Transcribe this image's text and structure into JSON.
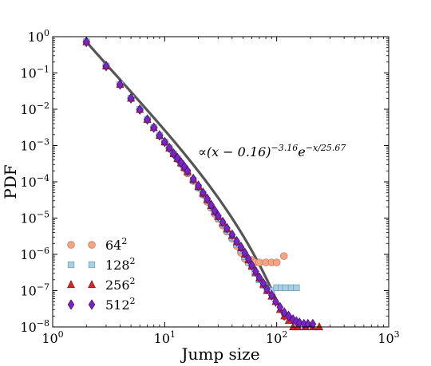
{
  "chart_data": {
    "type": "scatter",
    "xlabel": "Jump size",
    "ylabel": "PDF",
    "xscale": "log",
    "yscale": "log",
    "xlim": [
      1,
      1000
    ],
    "ylim": [
      1e-08,
      1
    ],
    "x_ticks": [
      {
        "value": 1,
        "base": "10",
        "exp": "0"
      },
      {
        "value": 10,
        "base": "10",
        "exp": "1"
      },
      {
        "value": 100,
        "base": "10",
        "exp": "2"
      },
      {
        "value": 1000,
        "base": "10",
        "exp": "3"
      }
    ],
    "y_ticks": [
      {
        "value": 1,
        "base": "10",
        "exp": "0"
      },
      {
        "value": 0.1,
        "base": "10",
        "exp": "−1"
      },
      {
        "value": 0.01,
        "base": "10",
        "exp": "−2"
      },
      {
        "value": 0.001,
        "base": "10",
        "exp": "−3"
      },
      {
        "value": 0.0001,
        "base": "10",
        "exp": "−4"
      },
      {
        "value": 1e-05,
        "base": "10",
        "exp": "−5"
      },
      {
        "value": 1e-06,
        "base": "10",
        "exp": "−6"
      },
      {
        "value": 1e-07,
        "base": "10",
        "exp": "−7"
      },
      {
        "value": 1e-08,
        "base": "10",
        "exp": "−8"
      }
    ],
    "legend_position": "lower-left",
    "annotation": {
      "prefix": "∝(x − 0.16)",
      "exp1": "−3.16",
      "mid": "e",
      "exp2": "−x/25.67",
      "x": 22,
      "y": 0.0011
    },
    "fit": {
      "color": "#555555",
      "a": 0.16,
      "alpha": 3.16,
      "lambda": 25.67,
      "norm": 0.67,
      "x_start": 2,
      "x_end": 117
    },
    "series": [
      {
        "label_base": "64",
        "label_exp": "2",
        "marker": "circle",
        "color": "#F4A582",
        "edge": "#c0785a",
        "points": [
          [
            2,
            0.72
          ],
          [
            3,
            0.155
          ],
          [
            4,
            0.048
          ],
          [
            5,
            0.02
          ],
          [
            6,
            0.0098
          ],
          [
            7,
            0.0052
          ],
          [
            8,
            0.0031
          ],
          [
            9,
            0.0019
          ],
          [
            10,
            0.00125
          ],
          [
            11,
            0.00084
          ],
          [
            12,
            0.00058
          ],
          [
            13,
            0.00042
          ],
          [
            14,
            0.00031
          ],
          [
            15,
            0.00023
          ],
          [
            16,
            0.00017
          ],
          [
            18,
            0.000105
          ],
          [
            20,
            6.8e-05
          ],
          [
            22,
            4.4e-05
          ],
          [
            24,
            2.8e-05
          ],
          [
            26,
            1.9e-05
          ],
          [
            28,
            1.3e-05
          ],
          [
            30,
            9.5e-06
          ],
          [
            33,
            6.2e-06
          ],
          [
            36,
            4.2e-06
          ],
          [
            40,
            2.7e-06
          ],
          [
            44,
            1.7e-06
          ],
          [
            48,
            1.1e-06
          ],
          [
            52,
            7.5e-07
          ],
          [
            56,
            6e-07
          ],
          [
            60,
            7e-07
          ],
          [
            64,
            6e-07
          ],
          [
            70,
            6e-07
          ],
          [
            80,
            6e-07
          ],
          [
            90,
            6e-07
          ],
          [
            100,
            6e-07
          ],
          [
            116,
            9e-07
          ]
        ]
      },
      {
        "label_base": "128",
        "label_exp": "2",
        "marker": "square",
        "color": "#A6D0E4",
        "edge": "#6e9ab0",
        "points": [
          [
            2,
            0.72
          ],
          [
            3,
            0.155
          ],
          [
            4,
            0.048
          ],
          [
            5,
            0.02
          ],
          [
            6,
            0.0098
          ],
          [
            7,
            0.0052
          ],
          [
            8,
            0.0031
          ],
          [
            9,
            0.0019
          ],
          [
            10,
            0.00125
          ],
          [
            11,
            0.00085
          ],
          [
            12,
            0.00059
          ],
          [
            13,
            0.00043
          ],
          [
            14,
            0.00032
          ],
          [
            15,
            0.00024
          ],
          [
            16,
            0.00018
          ],
          [
            18,
            0.00011
          ],
          [
            20,
            7e-05
          ],
          [
            22,
            4.6e-05
          ],
          [
            24,
            3e-05
          ],
          [
            26,
            2e-05
          ],
          [
            28,
            1.4e-05
          ],
          [
            30,
            1e-05
          ],
          [
            33,
            6.7e-06
          ],
          [
            36,
            4.5e-06
          ],
          [
            40,
            2.9e-06
          ],
          [
            44,
            1.9e-06
          ],
          [
            48,
            1.3e-06
          ],
          [
            52,
            8.8e-07
          ],
          [
            56,
            6e-07
          ],
          [
            60,
            4.5e-07
          ],
          [
            64,
            3e-07
          ],
          [
            70,
            2e-07
          ],
          [
            76,
            1.4e-07
          ],
          [
            82,
            1.1e-07
          ],
          [
            90,
            1e-07
          ],
          [
            100,
            1.2e-07
          ],
          [
            110,
            1.2e-07
          ],
          [
            120,
            1.2e-07
          ],
          [
            135,
            1.2e-07
          ],
          [
            150,
            1.2e-07
          ]
        ]
      },
      {
        "label_base": "256",
        "label_exp": "2",
        "marker": "triangle",
        "color": "#D62728",
        "edge": "#7a1515",
        "points": [
          [
            2,
            0.72
          ],
          [
            3,
            0.155
          ],
          [
            4,
            0.048
          ],
          [
            5,
            0.02
          ],
          [
            6,
            0.0098
          ],
          [
            7,
            0.0052
          ],
          [
            8,
            0.0031
          ],
          [
            9,
            0.0019
          ],
          [
            10,
            0.00125
          ],
          [
            11,
            0.00085
          ],
          [
            12,
            0.0006
          ],
          [
            13,
            0.00044
          ],
          [
            14,
            0.00033
          ],
          [
            15,
            0.00025
          ],
          [
            16,
            0.00019
          ],
          [
            18,
            0.000115
          ],
          [
            20,
            7.4e-05
          ],
          [
            22,
            4.8e-05
          ],
          [
            24,
            3.2e-05
          ],
          [
            26,
            2.2e-05
          ],
          [
            28,
            1.5e-05
          ],
          [
            30,
            1.1e-05
          ],
          [
            33,
            7.4e-06
          ],
          [
            36,
            5e-06
          ],
          [
            40,
            3.3e-06
          ],
          [
            44,
            2.2e-06
          ],
          [
            48,
            1.5e-06
          ],
          [
            52,
            1e-06
          ],
          [
            56,
            7e-07
          ],
          [
            60,
            4.8e-07
          ],
          [
            65,
            3.2e-07
          ],
          [
            70,
            2.2e-07
          ],
          [
            76,
            1.5e-07
          ],
          [
            82,
            1e-07
          ],
          [
            90,
            7e-08
          ],
          [
            98,
            5e-08
          ],
          [
            107,
            3e-08
          ],
          [
            117,
            2e-08
          ],
          [
            128,
            1.5e-08
          ],
          [
            140,
            1e-08
          ],
          [
            155,
            1e-08
          ],
          [
            180,
            1e-08
          ],
          [
            210,
            1e-08
          ],
          [
            240,
            1e-08
          ]
        ]
      },
      {
        "label_base": "512",
        "label_exp": "2",
        "marker": "diamond",
        "color": "#7B22C9",
        "edge": "#3d0f66",
        "points": [
          [
            2,
            0.72
          ],
          [
            3,
            0.155
          ],
          [
            4,
            0.048
          ],
          [
            5,
            0.02
          ],
          [
            6,
            0.0098
          ],
          [
            7,
            0.0052
          ],
          [
            8,
            0.0031
          ],
          [
            9,
            0.0019
          ],
          [
            10,
            0.00125
          ],
          [
            11,
            0.00086
          ],
          [
            12,
            0.0006
          ],
          [
            13,
            0.00045
          ],
          [
            14,
            0.00034
          ],
          [
            15,
            0.00026
          ],
          [
            16,
            0.0002
          ],
          [
            18,
            0.00012
          ],
          [
            20,
            7.8e-05
          ],
          [
            22,
            5e-05
          ],
          [
            24,
            3.4e-05
          ],
          [
            26,
            2.3e-05
          ],
          [
            28,
            1.6e-05
          ],
          [
            30,
            1.15e-05
          ],
          [
            33,
            7.8e-06
          ],
          [
            36,
            5.3e-06
          ],
          [
            40,
            3.5e-06
          ],
          [
            44,
            2.3e-06
          ],
          [
            48,
            1.6e-06
          ],
          [
            52,
            1.1e-06
          ],
          [
            56,
            7.5e-07
          ],
          [
            60,
            5e-07
          ],
          [
            65,
            3.4e-07
          ],
          [
            70,
            2.3e-07
          ],
          [
            76,
            1.6e-07
          ],
          [
            82,
            1.1e-07
          ],
          [
            90,
            7.5e-08
          ],
          [
            98,
            5e-08
          ],
          [
            107,
            3.5e-08
          ],
          [
            117,
            2.5e-08
          ],
          [
            128,
            2e-08
          ],
          [
            140,
            1.6e-08
          ],
          [
            150,
            1.4e-08
          ],
          [
            160,
            1.3e-08
          ],
          [
            175,
            1.2e-08
          ],
          [
            190,
            1.2e-08
          ],
          [
            210,
            1.2e-08
          ]
        ]
      }
    ]
  }
}
